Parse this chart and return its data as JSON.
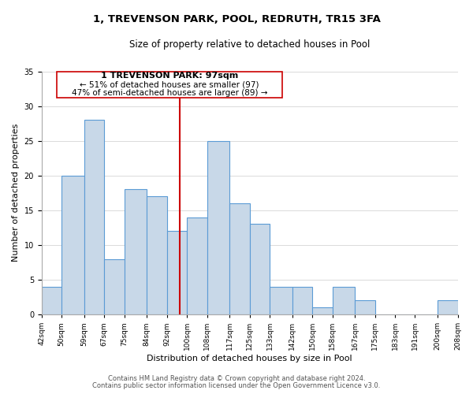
{
  "title": "1, TREVENSON PARK, POOL, REDRUTH, TR15 3FA",
  "subtitle": "Size of property relative to detached houses in Pool",
  "xlabel": "Distribution of detached houses by size in Pool",
  "ylabel": "Number of detached properties",
  "footer_line1": "Contains HM Land Registry data © Crown copyright and database right 2024.",
  "footer_line2": "Contains public sector information licensed under the Open Government Licence v3.0.",
  "bins": [
    "42sqm",
    "50sqm",
    "59sqm",
    "67sqm",
    "75sqm",
    "84sqm",
    "92sqm",
    "100sqm",
    "108sqm",
    "117sqm",
    "125sqm",
    "133sqm",
    "142sqm",
    "150sqm",
    "158sqm",
    "167sqm",
    "175sqm",
    "183sqm",
    "191sqm",
    "200sqm",
    "208sqm"
  ],
  "values": [
    4,
    20,
    28,
    8,
    18,
    17,
    12,
    14,
    25,
    16,
    13,
    4,
    4,
    1,
    4,
    2,
    0,
    0,
    0,
    2
  ],
  "bar_color": "#c8d8e8",
  "bar_edge_color": "#5b9bd5",
  "property_line_x": 97,
  "property_line_color": "#cc0000",
  "annotation_title": "1 TREVENSON PARK: 97sqm",
  "annotation_line1": "← 51% of detached houses are smaller (97)",
  "annotation_line2": "47% of semi-detached houses are larger (89) →",
  "annotation_box_edge": "#cc0000",
  "ylim": [
    0,
    35
  ],
  "yticks": [
    0,
    5,
    10,
    15,
    20,
    25,
    30,
    35
  ],
  "bin_edges": [
    42,
    50,
    59,
    67,
    75,
    84,
    92,
    100,
    108,
    117,
    125,
    133,
    142,
    150,
    158,
    167,
    175,
    183,
    191,
    200,
    208
  ],
  "title_fontsize": 9.5,
  "subtitle_fontsize": 8.5,
  "ylabel_fontsize": 8,
  "xlabel_fontsize": 8,
  "tick_fontsize": 7,
  "xtick_fontsize": 6.5,
  "footer_fontsize": 6,
  "annot_title_fontsize": 8,
  "annot_text_fontsize": 7.5
}
